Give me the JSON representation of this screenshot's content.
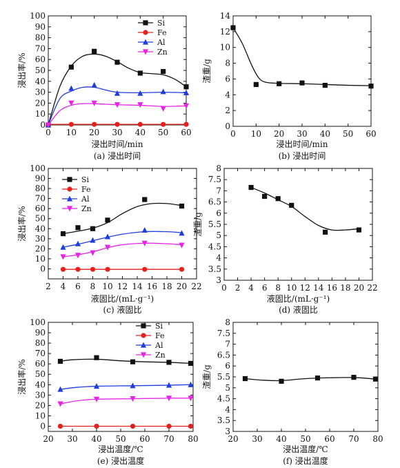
{
  "chart_data": [
    {
      "type": "line",
      "caption": "(a) 浸出时间",
      "xlabel": "浸出时间/min",
      "ylabel": "浸出率/%",
      "xlim": [
        0,
        60
      ],
      "ylim": [
        0,
        100
      ],
      "xticks": [
        0,
        10,
        20,
        30,
        40,
        50,
        60
      ],
      "yticks": [
        0,
        10,
        20,
        30,
        40,
        50,
        60,
        70,
        80,
        90,
        100
      ],
      "grid": false,
      "legend": "top-right",
      "series": [
        {
          "name": "Si",
          "color": "#111111",
          "marker": "square",
          "points": [
            [
              0,
              0
            ],
            [
              10,
              53
            ],
            [
              20,
              67.5
            ],
            [
              30,
              57.5
            ],
            [
              40,
              47.5
            ],
            [
              50,
              49
            ],
            [
              60,
              35
            ]
          ],
          "curve": [
            [
              0,
              0
            ],
            [
              5,
              35
            ],
            [
              10,
              54
            ],
            [
              15,
              63
            ],
            [
              20,
              65
            ],
            [
              25,
              63
            ],
            [
              30,
              58
            ],
            [
              35,
              52
            ],
            [
              40,
              48
            ],
            [
              45,
              47
            ],
            [
              50,
              46
            ],
            [
              55,
              42
            ],
            [
              60,
              35
            ]
          ]
        },
        {
          "name": "Fe",
          "color": "#e8201c",
          "marker": "circle",
          "points": [
            [
              0,
              0
            ],
            [
              10,
              0.5
            ],
            [
              20,
              0.5
            ],
            [
              30,
              0.5
            ],
            [
              40,
              0.5
            ],
            [
              50,
              0.5
            ],
            [
              60,
              0.5
            ]
          ],
          "curve": [
            [
              0,
              0.5
            ],
            [
              60,
              0.5
            ]
          ]
        },
        {
          "name": "Al",
          "color": "#1f3ee0",
          "marker": "triangle-up",
          "points": [
            [
              0,
              0
            ],
            [
              10,
              33.5
            ],
            [
              20,
              36.5
            ],
            [
              30,
              29
            ],
            [
              40,
              29
            ],
            [
              50,
              30.5
            ],
            [
              60,
              29.5
            ]
          ],
          "curve": [
            [
              0,
              0
            ],
            [
              5,
              24
            ],
            [
              10,
              31
            ],
            [
              15,
              34.5
            ],
            [
              20,
              34.5
            ],
            [
              25,
              32
            ],
            [
              30,
              30
            ],
            [
              40,
              29.5
            ],
            [
              50,
              30
            ],
            [
              60,
              29.5
            ]
          ]
        },
        {
          "name": "Zn",
          "color": "#e623e6",
          "marker": "triangle-down",
          "points": [
            [
              0,
              0
            ],
            [
              10,
              20
            ],
            [
              20,
              20
            ],
            [
              30,
              18.5
            ],
            [
              40,
              18.5
            ],
            [
              50,
              15
            ],
            [
              60,
              17.5
            ]
          ],
          "curve": [
            [
              0,
              0
            ],
            [
              5,
              13
            ],
            [
              10,
              18
            ],
            [
              15,
              19.5
            ],
            [
              20,
              19.5
            ],
            [
              25,
              19
            ],
            [
              30,
              18.5
            ],
            [
              40,
              18
            ],
            [
              50,
              17
            ],
            [
              60,
              17.5
            ]
          ]
        }
      ]
    },
    {
      "type": "line",
      "caption": "(b) 浸出时间",
      "xlabel": "浸出时间/min",
      "ylabel": "渣重/g",
      "xlim": [
        0,
        60
      ],
      "ylim": [
        0,
        14
      ],
      "xticks": [
        0,
        10,
        20,
        30,
        40,
        50,
        60
      ],
      "yticks": [
        0,
        2,
        4,
        6,
        8,
        10,
        12,
        14
      ],
      "grid": false,
      "series": [
        {
          "name": "",
          "color": "#111111",
          "marker": "square",
          "points": [
            [
              0,
              12.5
            ],
            [
              10,
              5.3
            ],
            [
              20,
              5.4
            ],
            [
              30,
              5.5
            ],
            [
              40,
              5.2
            ],
            [
              60,
              5.1
            ]
          ],
          "curve": [
            [
              0,
              12.5
            ],
            [
              4,
              10.5
            ],
            [
              8,
              7.8
            ],
            [
              11,
              6.2
            ],
            [
              14,
              5.6
            ],
            [
              20,
              5.45
            ],
            [
              30,
              5.4
            ],
            [
              40,
              5.3
            ],
            [
              50,
              5.2
            ],
            [
              60,
              5.15
            ]
          ]
        }
      ]
    },
    {
      "type": "line",
      "caption": "(c) 液固比",
      "xlabel": "液固比/(mL·g⁻¹)",
      "ylabel": "浸出率/%",
      "xlim": [
        2,
        22
      ],
      "ylim": [
        -10,
        100
      ],
      "xticks": [
        2,
        4,
        6,
        8,
        10,
        12,
        14,
        16,
        18,
        20,
        22
      ],
      "yticks": [
        0,
        10,
        20,
        30,
        40,
        50,
        60,
        70,
        80,
        90,
        100
      ],
      "grid": false,
      "legend": "top-left",
      "series": [
        {
          "name": "Si",
          "color": "#111111",
          "marker": "square",
          "points": [
            [
              4,
              35
            ],
            [
              6,
              41
            ],
            [
              8,
              40
            ],
            [
              10,
              48.5
            ],
            [
              15,
              69
            ],
            [
              20,
              62.5
            ]
          ],
          "curve": [
            [
              4,
              35
            ],
            [
              6,
              37.5
            ],
            [
              8,
              40.5
            ],
            [
              10,
              46
            ],
            [
              12,
              55
            ],
            [
              14,
              62
            ],
            [
              16,
              65
            ],
            [
              18,
              65
            ],
            [
              20,
              63
            ]
          ]
        },
        {
          "name": "Fe",
          "color": "#e8201c",
          "marker": "circle",
          "points": [
            [
              4,
              -0.5
            ],
            [
              6,
              -0.5
            ],
            [
              8,
              -0.5
            ],
            [
              10,
              -0.5
            ],
            [
              15,
              -0.5
            ],
            [
              20,
              -0.5
            ]
          ],
          "curve": [
            [
              4,
              -0.5
            ],
            [
              20,
              -0.5
            ]
          ]
        },
        {
          "name": "Al",
          "color": "#1f3ee0",
          "marker": "triangle-up",
          "points": [
            [
              4,
              21.5
            ],
            [
              6,
              25
            ],
            [
              8,
              28.5
            ],
            [
              10,
              32
            ],
            [
              15,
              38.5
            ],
            [
              20,
              35.5
            ]
          ],
          "curve": [
            [
              4,
              21.5
            ],
            [
              6,
              24.5
            ],
            [
              8,
              28
            ],
            [
              10,
              31.5
            ],
            [
              12,
              34.5
            ],
            [
              15,
              37
            ],
            [
              18,
              37
            ],
            [
              20,
              36
            ]
          ]
        },
        {
          "name": "Zn",
          "color": "#e623e6",
          "marker": "triangle-down",
          "points": [
            [
              4,
              12
            ],
            [
              6,
              13.5
            ],
            [
              8,
              16
            ],
            [
              10,
              21.5
            ],
            [
              15,
              25.5
            ],
            [
              20,
              23.5
            ]
          ],
          "curve": [
            [
              4,
              12
            ],
            [
              6,
              14
            ],
            [
              8,
              17
            ],
            [
              10,
              21
            ],
            [
              12,
              24
            ],
            [
              15,
              25.5
            ],
            [
              18,
              25
            ],
            [
              20,
              24
            ]
          ]
        }
      ]
    },
    {
      "type": "line",
      "caption": "(d) 液固比",
      "xlabel": "液固比/(mL·g⁻¹)",
      "ylabel": "渣重/g",
      "xlim": [
        0,
        22
      ],
      "ylim": [
        3,
        8
      ],
      "xticks": [
        0,
        2,
        4,
        6,
        8,
        10,
        12,
        14,
        16,
        18,
        20,
        22
      ],
      "yticks": [
        3.0,
        3.5,
        4.0,
        4.5,
        5.0,
        5.5,
        6.0,
        6.5,
        7.0,
        7.5,
        8.0
      ],
      "grid": false,
      "series": [
        {
          "name": "",
          "color": "#111111",
          "marker": "square",
          "points": [
            [
              4,
              7.15
            ],
            [
              6,
              6.75
            ],
            [
              8,
              6.65
            ],
            [
              10,
              6.35
            ],
            [
              15,
              5.15
            ],
            [
              20,
              5.25
            ]
          ],
          "curve": [
            [
              4,
              7.15
            ],
            [
              6,
              6.9
            ],
            [
              8,
              6.6
            ],
            [
              10,
              6.3
            ],
            [
              12,
              5.85
            ],
            [
              14,
              5.45
            ],
            [
              16,
              5.25
            ],
            [
              18,
              5.25
            ],
            [
              20,
              5.3
            ]
          ]
        }
      ]
    },
    {
      "type": "line",
      "caption": "(e) 浸出温度",
      "xlabel": "浸出温度/℃",
      "ylabel": "浸出率/%",
      "xlim": [
        20,
        80
      ],
      "ylim": [
        -5,
        100
      ],
      "xticks": [
        20,
        30,
        40,
        50,
        60,
        70,
        80
      ],
      "yticks": [
        0,
        10,
        20,
        30,
        40,
        50,
        60,
        70,
        80,
        90,
        100
      ],
      "grid": false,
      "legend": "top-right",
      "series": [
        {
          "name": "Si",
          "color": "#111111",
          "marker": "square",
          "points": [
            [
              25,
              62.5
            ],
            [
              40,
              66
            ],
            [
              55,
              62
            ],
            [
              70,
              61.5
            ],
            [
              79,
              60.5
            ]
          ],
          "curve": [
            [
              25,
              62.5
            ],
            [
              30,
              64
            ],
            [
              40,
              64.5
            ],
            [
              50,
              63
            ],
            [
              60,
              62
            ],
            [
              70,
              61.5
            ],
            [
              79,
              60.5
            ]
          ]
        },
        {
          "name": "Fe",
          "color": "#e8201c",
          "marker": "circle",
          "points": [
            [
              25,
              0
            ],
            [
              40,
              0
            ],
            [
              55,
              0
            ],
            [
              70,
              0
            ],
            [
              79,
              0
            ]
          ],
          "curve": [
            [
              25,
              0
            ],
            [
              79,
              0
            ]
          ]
        },
        {
          "name": "Al",
          "color": "#1f3ee0",
          "marker": "triangle-up",
          "points": [
            [
              25,
              35.5
            ],
            [
              40,
              38.5
            ],
            [
              55,
              39
            ],
            [
              70,
              39.5
            ],
            [
              79,
              40
            ]
          ],
          "curve": [
            [
              25,
              35.5
            ],
            [
              32,
              37.5
            ],
            [
              40,
              38.5
            ],
            [
              55,
              39
            ],
            [
              70,
              39.5
            ],
            [
              79,
              40
            ]
          ]
        },
        {
          "name": "Zn",
          "color": "#e623e6",
          "marker": "triangle-down",
          "points": [
            [
              25,
              21.5
            ],
            [
              40,
              26
            ],
            [
              55,
              26.5
            ],
            [
              70,
              27
            ],
            [
              79,
              27
            ]
          ],
          "curve": [
            [
              25,
              21.5
            ],
            [
              32,
              24.5
            ],
            [
              40,
              26
            ],
            [
              55,
              26.5
            ],
            [
              70,
              27
            ],
            [
              79,
              27
            ]
          ]
        }
      ]
    },
    {
      "type": "line",
      "caption": "(f) 浸出温度",
      "xlabel": "浸出温度/℃",
      "ylabel": "渣重/g",
      "xlim": [
        20,
        80
      ],
      "ylim": [
        3,
        8
      ],
      "xticks": [
        20,
        30,
        40,
        50,
        60,
        70,
        80
      ],
      "yticks": [
        3.0,
        3.5,
        4.0,
        4.5,
        5.0,
        5.5,
        6.0,
        6.5,
        7.0,
        7.5,
        8.0
      ],
      "grid": false,
      "series": [
        {
          "name": "",
          "color": "#111111",
          "marker": "square",
          "points": [
            [
              25,
              5.42
            ],
            [
              40,
              5.3
            ],
            [
              55,
              5.45
            ],
            [
              70,
              5.48
            ],
            [
              79,
              5.4
            ]
          ],
          "curve": [
            [
              25,
              5.42
            ],
            [
              32,
              5.35
            ],
            [
              40,
              5.33
            ],
            [
              50,
              5.42
            ],
            [
              60,
              5.46
            ],
            [
              70,
              5.47
            ],
            [
              79,
              5.4
            ]
          ]
        }
      ]
    }
  ]
}
